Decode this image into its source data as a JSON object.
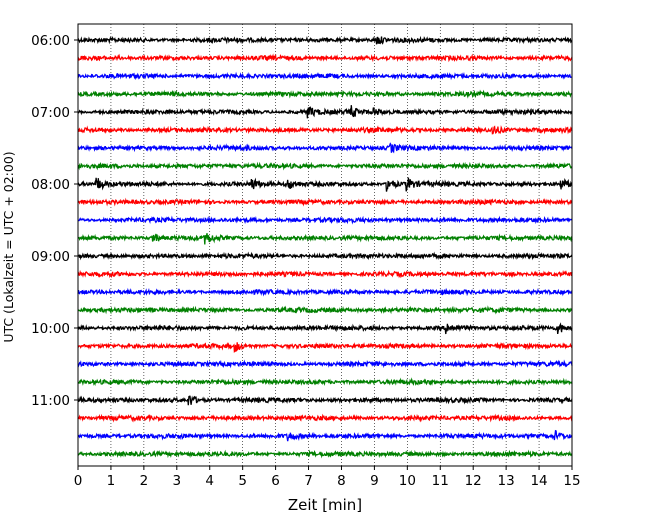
{
  "chart_data": {
    "type": "line",
    "chart_kind": "helicorder seismogram",
    "xlabel": "Zeit  [min]",
    "ylabel": "UTC (Lokalzeit = UTC + 02:00)",
    "xlim": [
      0,
      15
    ],
    "x_ticks": [
      "0",
      "1",
      "2",
      "3",
      "4",
      "5",
      "6",
      "7",
      "8",
      "9",
      "10",
      "11",
      "12",
      "13",
      "14",
      "15"
    ],
    "x_grid": "dotted vertical lines at every minute",
    "y_ticks": [
      "06:00",
      "07:00",
      "08:00",
      "09:00",
      "10:00",
      "11:00"
    ],
    "row_interval_minutes": 15,
    "row_start_times": [
      "06:00",
      "06:15",
      "06:30",
      "06:45",
      "07:00",
      "07:15",
      "07:30",
      "07:45",
      "08:00",
      "08:15",
      "08:30",
      "08:45",
      "09:00",
      "09:15",
      "09:30",
      "09:45",
      "10:00",
      "10:15",
      "10:30",
      "10:45",
      "11:00",
      "11:15",
      "11:30",
      "11:45"
    ],
    "trace_color_cycle": [
      "#000000",
      "#ff0000",
      "#0000ff",
      "#008000"
    ],
    "events": [
      {
        "row": 0,
        "minute": 9.1,
        "amp": 1.2
      },
      {
        "row": 4,
        "minute": 7.0,
        "amp": 1.5
      },
      {
        "row": 4,
        "minute": 8.3,
        "amp": 1.6
      },
      {
        "row": 4,
        "minute": 9.0,
        "amp": 1.1
      },
      {
        "row": 5,
        "minute": 12.6,
        "amp": 1.3
      },
      {
        "row": 6,
        "minute": 9.5,
        "amp": 1.2
      },
      {
        "row": 8,
        "minute": 0.6,
        "amp": 1.7
      },
      {
        "row": 8,
        "minute": 5.3,
        "amp": 1.5
      },
      {
        "row": 8,
        "minute": 6.4,
        "amp": 1.4
      },
      {
        "row": 8,
        "minute": 9.4,
        "amp": 2.0
      },
      {
        "row": 8,
        "minute": 10.0,
        "amp": 2.0
      },
      {
        "row": 8,
        "minute": 14.7,
        "amp": 1.6
      },
      {
        "row": 11,
        "minute": 2.3,
        "amp": 1.3
      },
      {
        "row": 11,
        "minute": 3.9,
        "amp": 1.4
      },
      {
        "row": 16,
        "minute": 11.2,
        "amp": 1.4
      },
      {
        "row": 16,
        "minute": 14.6,
        "amp": 1.4
      },
      {
        "row": 17,
        "minute": 4.8,
        "amp": 1.3
      },
      {
        "row": 20,
        "minute": 3.4,
        "amp": 1.6
      },
      {
        "row": 22,
        "minute": 6.4,
        "amp": 1.2
      },
      {
        "row": 22,
        "minute": 14.5,
        "amp": 1.2
      }
    ]
  }
}
